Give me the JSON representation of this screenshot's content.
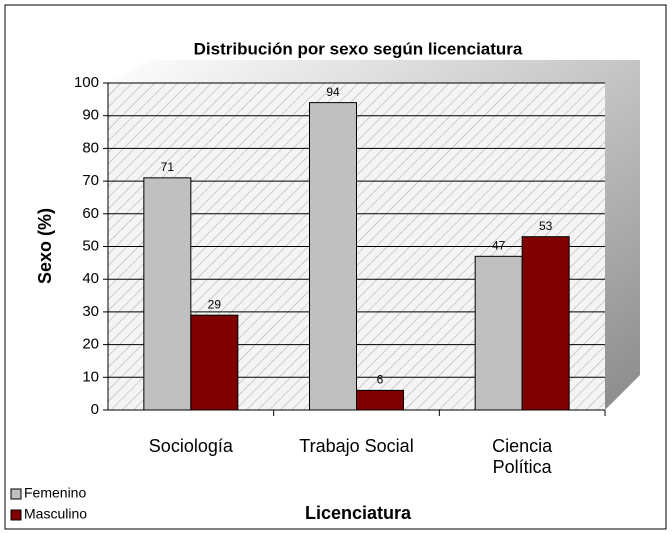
{
  "chart_data": {
    "type": "bar",
    "title": "Distribución por sexo según licenciatura",
    "xlabel": "Licenciatura",
    "ylabel": "Sexo (%)",
    "categories": [
      "Sociología",
      "Trabajo Social",
      "Ciencia Política"
    ],
    "series": [
      {
        "name": "Femenino",
        "color": "#c0c0c0",
        "values": [
          71,
          94,
          47
        ]
      },
      {
        "name": "Masculino",
        "color": "#800000",
        "values": [
          29,
          6,
          53
        ]
      }
    ],
    "ylim": [
      0,
      100
    ],
    "yticks": [
      0,
      10,
      20,
      30,
      40,
      50,
      60,
      70,
      80,
      90,
      100
    ],
    "grid": true,
    "legend": "bottom-left"
  }
}
